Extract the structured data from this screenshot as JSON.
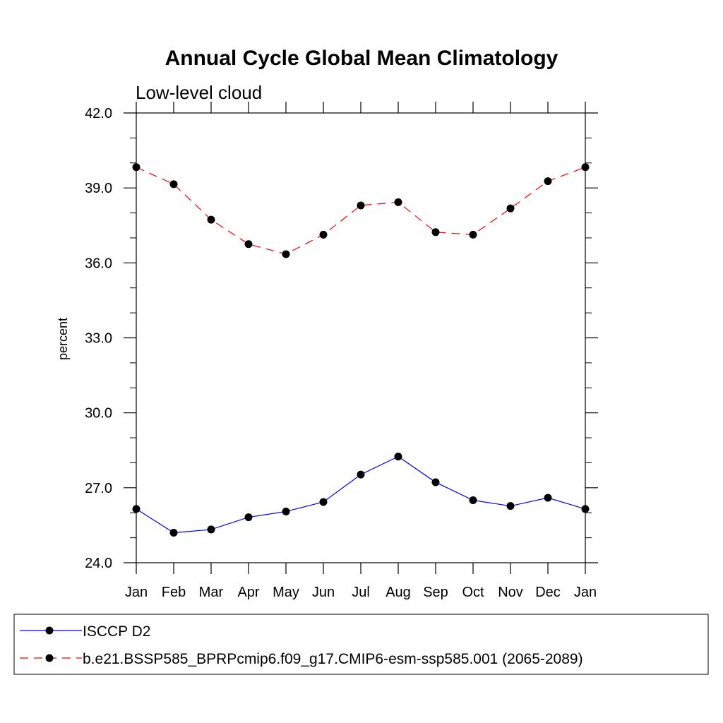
{
  "chart_data": {
    "type": "line",
    "title": "Annual Cycle Global Mean Climatology",
    "subtitle": "Low-level cloud",
    "xlabel": "",
    "ylabel": "percent",
    "categories": [
      "Jan",
      "Feb",
      "Mar",
      "Apr",
      "May",
      "Jun",
      "Jul",
      "Aug",
      "Sep",
      "Oct",
      "Nov",
      "Dec",
      "Jan"
    ],
    "ylim": [
      24.0,
      42.0
    ],
    "yticks": [
      24.0,
      27.0,
      30.0,
      33.0,
      36.0,
      39.0,
      42.0
    ],
    "ytick_labels": [
      "24.0",
      "27.0",
      "30.0",
      "33.0",
      "36.0",
      "39.0",
      "42.0"
    ],
    "grid": false,
    "legend_position": "bottom",
    "series": [
      {
        "name": "ISCCP D2",
        "color": "#0000ff",
        "dash": "solid",
        "values": [
          26.15,
          25.2,
          25.33,
          25.82,
          26.05,
          26.43,
          27.53,
          28.25,
          27.22,
          26.5,
          26.27,
          26.6,
          26.15
        ]
      },
      {
        "name": "b.e21.BSSP585_BPRPcmip6.f09_g17.CMIP6-esm-ssp585.001 (2065-2089)",
        "color": "#ff0000",
        "dash": "dashed",
        "values": [
          39.83,
          39.15,
          37.73,
          36.75,
          36.35,
          37.13,
          38.3,
          38.43,
          37.23,
          37.13,
          38.18,
          39.27,
          39.83
        ]
      }
    ]
  }
}
